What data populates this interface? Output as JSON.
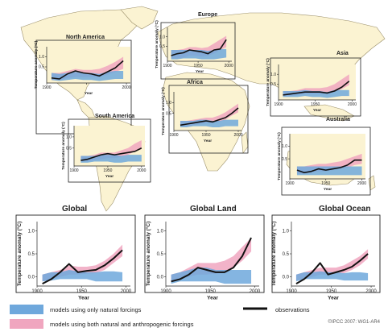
{
  "colors": {
    "natural": "#6fa8dc",
    "anthropogenic": "#f0a6bf",
    "overlap": "#b9a2cf",
    "observation": "#111111",
    "land": "#fbf3d2",
    "land_outline": "#9b8f6a",
    "background": "#ffffff"
  },
  "legend": {
    "natural_label": "models using only natural forcings",
    "combined_label": "models using both natural and anthropogenic forcings",
    "observations_label": "observations"
  },
  "copyright": "©IPCC 2007: WG1-AR4",
  "chart_data": [
    {
      "type": "line",
      "title": "North America",
      "xlabel": "Year",
      "ylabel": "Temperature anomaly (°C)",
      "x": [
        1906,
        1916,
        1926,
        1936,
        1946,
        1956,
        1966,
        1976,
        1986,
        1996
      ],
      "xticks": [
        1900,
        1950,
        2000
      ],
      "xtick_labels": [
        "1900",
        "",
        "2000"
      ],
      "yticks": [
        0.5,
        1.0
      ],
      "ylim": [
        -0.3,
        1.5
      ],
      "observations": [
        -0.05,
        -0.1,
        0.15,
        0.3,
        0.2,
        0.15,
        0.05,
        0.25,
        0.45,
        0.8
      ],
      "natural_band": {
        "lower": [
          -0.15,
          -0.2,
          -0.15,
          -0.1,
          -0.15,
          -0.15,
          -0.2,
          -0.15,
          -0.1,
          -0.1
        ],
        "upper": [
          0.2,
          0.15,
          0.2,
          0.25,
          0.2,
          0.2,
          0.15,
          0.25,
          0.3,
          0.3
        ]
      },
      "combined_band": {
        "lower": [
          -0.15,
          -0.15,
          -0.05,
          0.0,
          0.0,
          0.0,
          0.0,
          0.1,
          0.25,
          0.4
        ],
        "upper": [
          0.2,
          0.2,
          0.3,
          0.4,
          0.35,
          0.35,
          0.4,
          0.55,
          0.75,
          1.0
        ]
      }
    },
    {
      "type": "line",
      "title": "Europe",
      "xlabel": "Year",
      "ylabel": "Temperature anomaly (°C)",
      "x": [
        1906,
        1916,
        1926,
        1936,
        1946,
        1956,
        1966,
        1976,
        1986,
        1996
      ],
      "xticks": [
        1900,
        1950,
        2000
      ],
      "xtick_labels": [
        "1900",
        "1950",
        "2000"
      ],
      "yticks": [
        0.5,
        1.0
      ],
      "ylim": [
        -0.3,
        1.5
      ],
      "observations": [
        0.0,
        0.1,
        0.15,
        0.3,
        0.25,
        0.2,
        0.1,
        0.3,
        0.35,
        0.85
      ],
      "natural_band": {
        "lower": [
          -0.2,
          -0.2,
          -0.15,
          -0.15,
          -0.15,
          -0.2,
          -0.2,
          -0.2,
          -0.15,
          -0.1
        ],
        "upper": [
          0.3,
          0.3,
          0.3,
          0.3,
          0.3,
          0.3,
          0.25,
          0.3,
          0.35,
          0.35
        ]
      },
      "combined_band": {
        "lower": [
          -0.15,
          -0.15,
          -0.1,
          0.0,
          0.0,
          -0.05,
          0.0,
          0.1,
          0.3,
          0.45
        ],
        "upper": [
          0.3,
          0.3,
          0.35,
          0.45,
          0.45,
          0.4,
          0.45,
          0.65,
          0.85,
          1.05
        ]
      }
    },
    {
      "type": "line",
      "title": "Asia",
      "xlabel": "Year",
      "ylabel": "Temperature anomaly (°C)",
      "x": [
        1906,
        1916,
        1926,
        1936,
        1946,
        1956,
        1966,
        1976,
        1986,
        1996
      ],
      "xticks": [
        1900,
        1950,
        2000
      ],
      "xtick_labels": [
        "1900",
        "1950",
        "2000"
      ],
      "yticks": [
        0.5,
        1.0
      ],
      "ylim": [
        -0.3,
        1.5
      ],
      "observations": [
        -0.05,
        0.0,
        0.05,
        0.1,
        0.1,
        0.1,
        0.05,
        0.15,
        0.35,
        0.65
      ],
      "natural_band": {
        "lower": [
          -0.15,
          -0.15,
          -0.15,
          -0.1,
          -0.15,
          -0.15,
          -0.2,
          -0.15,
          -0.1,
          -0.1
        ],
        "upper": [
          0.15,
          0.15,
          0.15,
          0.2,
          0.15,
          0.15,
          0.1,
          0.2,
          0.2,
          0.2
        ]
      },
      "combined_band": {
        "lower": [
          -0.1,
          -0.1,
          -0.05,
          0.0,
          0.0,
          0.0,
          0.0,
          0.1,
          0.25,
          0.45
        ],
        "upper": [
          0.15,
          0.15,
          0.2,
          0.3,
          0.3,
          0.3,
          0.35,
          0.5,
          0.75,
          1.0
        ]
      }
    },
    {
      "type": "line",
      "title": "Africa",
      "xlabel": "Year",
      "ylabel": "Temperature anomaly (°C)",
      "x": [
        1910,
        1920,
        1930,
        1940,
        1950,
        1960,
        1970,
        1980,
        1990,
        2000
      ],
      "xticks": [
        1900,
        1950,
        2000
      ],
      "xtick_labels": [
        "1900",
        "1950",
        "2000"
      ],
      "yticks": [
        0.5,
        1.0
      ],
      "ylim": [
        -0.3,
        1.5
      ],
      "observations": [
        -0.05,
        0.0,
        0.05,
        0.1,
        0.15,
        0.1,
        0.2,
        0.3,
        0.5,
        0.75
      ],
      "natural_band": {
        "lower": [
          -0.15,
          -0.15,
          -0.1,
          -0.1,
          -0.1,
          -0.15,
          -0.15,
          -0.1,
          -0.1,
          -0.1
        ],
        "upper": [
          0.15,
          0.15,
          0.15,
          0.2,
          0.2,
          0.15,
          0.15,
          0.2,
          0.2,
          0.2
        ]
      },
      "combined_band": {
        "lower": [
          -0.1,
          -0.1,
          -0.05,
          0.0,
          0.05,
          0.05,
          0.1,
          0.2,
          0.4,
          0.55
        ],
        "upper": [
          0.15,
          0.15,
          0.2,
          0.25,
          0.3,
          0.3,
          0.4,
          0.55,
          0.75,
          0.95
        ]
      }
    },
    {
      "type": "line",
      "title": "South America",
      "xlabel": "Year",
      "ylabel": "Temperature anomaly (°C)",
      "x": [
        1910,
        1920,
        1930,
        1940,
        1950,
        1960,
        1970,
        1980,
        1990,
        2000
      ],
      "xticks": [
        1900,
        1950,
        2000
      ],
      "xtick_labels": [
        "1900",
        "1950",
        "2000"
      ],
      "yticks": [
        0.5,
        1.0
      ],
      "ylim": [
        -0.3,
        1.5
      ],
      "observations": [
        -0.05,
        0.0,
        0.1,
        0.2,
        0.25,
        0.2,
        0.25,
        0.3,
        0.35,
        0.5
      ],
      "natural_band": {
        "lower": [
          -0.15,
          -0.15,
          -0.1,
          -0.1,
          -0.1,
          -0.15,
          -0.15,
          -0.1,
          -0.1,
          -0.1
        ],
        "upper": [
          0.15,
          0.15,
          0.15,
          0.2,
          0.2,
          0.2,
          0.15,
          0.2,
          0.2,
          0.2
        ]
      },
      "combined_band": {
        "lower": [
          -0.1,
          -0.1,
          -0.05,
          0.0,
          0.05,
          0.05,
          0.1,
          0.2,
          0.35,
          0.45
        ],
        "upper": [
          0.15,
          0.15,
          0.2,
          0.3,
          0.3,
          0.3,
          0.4,
          0.5,
          0.7,
          0.85
        ]
      }
    },
    {
      "type": "line",
      "title": "Australia",
      "xlabel": "Year",
      "ylabel": "Temperature anomaly (°C)",
      "x": [
        1910,
        1920,
        1930,
        1940,
        1950,
        1960,
        1970,
        1980,
        1990,
        2000
      ],
      "xticks": [
        1900,
        1950,
        2000
      ],
      "xtick_labels": [
        "1900",
        "1950",
        "2000"
      ],
      "yticks": [
        0.5,
        1.0
      ],
      "ylim": [
        -0.3,
        1.5
      ],
      "observations": [
        0.05,
        -0.05,
        0.0,
        0.1,
        0.05,
        0.1,
        0.15,
        0.25,
        0.45,
        0.45
      ],
      "natural_band": {
        "lower": [
          -0.15,
          -0.15,
          -0.15,
          -0.15,
          -0.15,
          -0.15,
          -0.15,
          -0.15,
          -0.15,
          -0.15
        ],
        "upper": [
          0.2,
          0.2,
          0.2,
          0.2,
          0.2,
          0.2,
          0.2,
          0.2,
          0.2,
          0.2
        ]
      },
      "combined_band": {
        "lower": [
          -0.1,
          -0.1,
          -0.05,
          0.0,
          0.0,
          0.05,
          0.1,
          0.15,
          0.25,
          0.3
        ],
        "upper": [
          0.2,
          0.2,
          0.25,
          0.3,
          0.3,
          0.35,
          0.4,
          0.5,
          0.6,
          0.7
        ]
      }
    },
    {
      "type": "line",
      "title": "Global",
      "xlabel": "Year",
      "ylabel": "Temperature anomaly (°C)",
      "x": [
        1906,
        1916,
        1926,
        1936,
        1946,
        1956,
        1966,
        1976,
        1986,
        1996
      ],
      "xticks": [
        1900,
        1950,
        2000
      ],
      "xtick_labels": [
        "1900",
        "1950",
        "2000"
      ],
      "yticks": [
        0.0,
        0.5,
        1.0
      ],
      "ylim": [
        -0.2,
        1.2
      ],
      "observations": [
        -0.15,
        -0.05,
        0.1,
        0.28,
        0.1,
        0.13,
        0.15,
        0.25,
        0.4,
        0.58
      ],
      "natural_band": {
        "lower": [
          -0.1,
          -0.08,
          -0.05,
          -0.05,
          -0.05,
          -0.05,
          -0.1,
          -0.1,
          -0.1,
          -0.1
        ],
        "upper": [
          0.05,
          0.1,
          0.1,
          0.15,
          0.12,
          0.1,
          0.1,
          0.12,
          0.12,
          0.1
        ]
      },
      "combined_band": {
        "lower": [
          -0.1,
          -0.05,
          0.0,
          0.05,
          0.05,
          0.07,
          0.08,
          0.15,
          0.3,
          0.45
        ],
        "upper": [
          0.05,
          0.1,
          0.15,
          0.25,
          0.22,
          0.22,
          0.25,
          0.35,
          0.5,
          0.7
        ]
      }
    },
    {
      "type": "line",
      "title": "Global Land",
      "xlabel": "Year",
      "ylabel": "Temperature anomaly (°C)",
      "x": [
        1906,
        1916,
        1926,
        1936,
        1946,
        1956,
        1966,
        1976,
        1986,
        1996
      ],
      "xticks": [
        1900,
        1950,
        2000
      ],
      "xtick_labels": [
        "1900",
        "1950",
        "2000"
      ],
      "yticks": [
        0.0,
        0.5,
        1.0
      ],
      "ylim": [
        -0.2,
        1.2
      ],
      "observations": [
        -0.1,
        -0.05,
        0.05,
        0.2,
        0.15,
        0.1,
        0.1,
        0.2,
        0.45,
        0.85
      ],
      "natural_band": {
        "lower": [
          -0.15,
          -0.1,
          -0.1,
          -0.1,
          -0.1,
          -0.1,
          -0.15,
          -0.15,
          -0.15,
          -0.15
        ],
        "upper": [
          0.05,
          0.1,
          0.15,
          0.2,
          0.2,
          0.15,
          0.15,
          0.15,
          0.15,
          0.15
        ]
      },
      "combined_band": {
        "lower": [
          -0.1,
          -0.05,
          0.0,
          0.05,
          0.05,
          0.07,
          0.1,
          0.2,
          0.35,
          0.55
        ],
        "upper": [
          0.05,
          0.1,
          0.2,
          0.3,
          0.3,
          0.3,
          0.35,
          0.45,
          0.65,
          0.85
        ]
      }
    },
    {
      "type": "line",
      "title": "Global Ocean",
      "xlabel": "Year",
      "ylabel": "Temperature anomaly (°C)",
      "x": [
        1906,
        1916,
        1926,
        1936,
        1946,
        1956,
        1966,
        1976,
        1986,
        1996
      ],
      "xticks": [
        1900,
        1950,
        2000
      ],
      "xtick_labels": [
        "1900",
        "1950",
        "2000"
      ],
      "yticks": [
        0.0,
        0.5,
        1.0
      ],
      "ylim": [
        -0.2,
        1.2
      ],
      "observations": [
        -0.15,
        -0.05,
        0.1,
        0.3,
        0.05,
        0.1,
        0.15,
        0.22,
        0.35,
        0.5
      ],
      "natural_band": {
        "lower": [
          -0.1,
          -0.05,
          -0.05,
          -0.05,
          -0.05,
          -0.05,
          -0.08,
          -0.08,
          -0.08,
          -0.08
        ],
        "upper": [
          0.05,
          0.1,
          0.1,
          0.12,
          0.1,
          0.1,
          0.08,
          0.1,
          0.1,
          0.08
        ]
      },
      "combined_band": {
        "lower": [
          -0.08,
          -0.05,
          0.0,
          0.05,
          0.05,
          0.07,
          0.08,
          0.15,
          0.25,
          0.4
        ],
        "upper": [
          0.05,
          0.1,
          0.15,
          0.2,
          0.2,
          0.2,
          0.25,
          0.35,
          0.45,
          0.6
        ]
      }
    }
  ]
}
